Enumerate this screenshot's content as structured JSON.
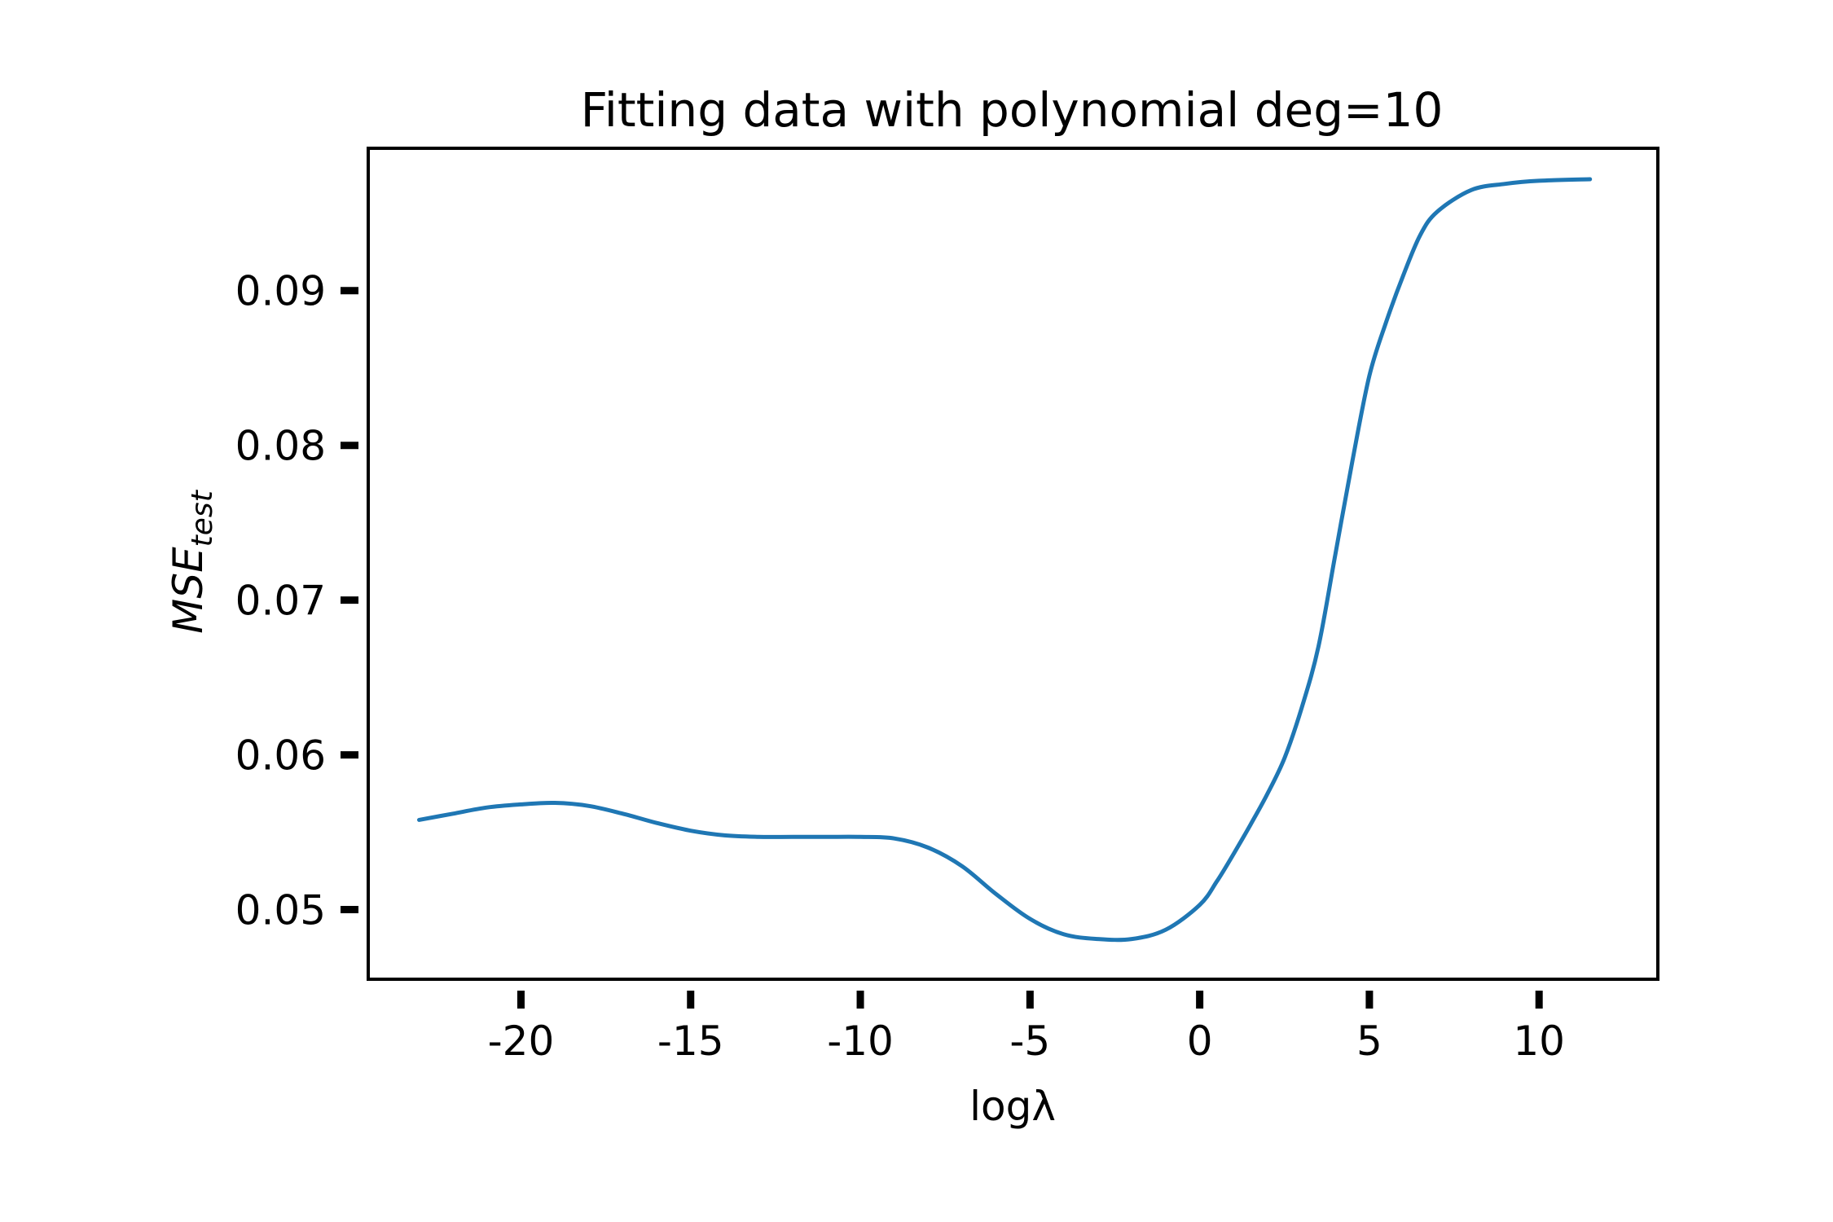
{
  "chart_data": {
    "type": "line",
    "title": "Fitting data with polynomial deg=10",
    "xlabel": "logλ",
    "ylabel": {
      "main": "MSE",
      "subscript": "test"
    },
    "xlim": [
      -24.5,
      13.5
    ],
    "ylim": [
      0.0455,
      0.0992
    ],
    "xticks": [
      -20,
      -15,
      -10,
      -5,
      0,
      5,
      10
    ],
    "xtick_labels": [
      "-20",
      "-15",
      "-10",
      "-5",
      "0",
      "5",
      "10"
    ],
    "yticks": [
      0.05,
      0.06,
      0.07,
      0.08,
      0.09
    ],
    "ytick_labels": [
      "0.05",
      "0.06",
      "0.07",
      "0.08",
      "0.09"
    ],
    "grid": false,
    "series": [
      {
        "color": "#1f77b4",
        "x": [
          -23.0,
          -22.0,
          -21.0,
          -20.0,
          -19.0,
          -18.0,
          -17.0,
          -16.0,
          -15.0,
          -14.0,
          -13.0,
          -12.0,
          -11.0,
          -10.0,
          -9.0,
          -8.0,
          -7.0,
          -6.0,
          -5.0,
          -4.0,
          -3.0,
          -2.0,
          -1.0,
          0.0,
          0.5,
          1.0,
          1.5,
          2.0,
          2.5,
          3.0,
          3.5,
          4.0,
          4.5,
          5.0,
          5.5,
          6.0,
          6.5,
          7.0,
          8.0,
          9.0,
          10.0,
          11.5
        ],
        "y": [
          0.0558,
          0.0562,
          0.0566,
          0.0568,
          0.0569,
          0.0567,
          0.0562,
          0.0556,
          0.0551,
          0.0548,
          0.0547,
          0.0547,
          0.0547,
          0.0547,
          0.0546,
          0.054,
          0.0528,
          0.051,
          0.0494,
          0.0484,
          0.0481,
          0.0481,
          0.0487,
          0.0503,
          0.0518,
          0.0536,
          0.0555,
          0.0575,
          0.0598,
          0.063,
          0.067,
          0.073,
          0.079,
          0.0845,
          0.088,
          0.091,
          0.0936,
          0.0951,
          0.0965,
          0.0969,
          0.0971,
          0.0972
        ]
      }
    ]
  }
}
